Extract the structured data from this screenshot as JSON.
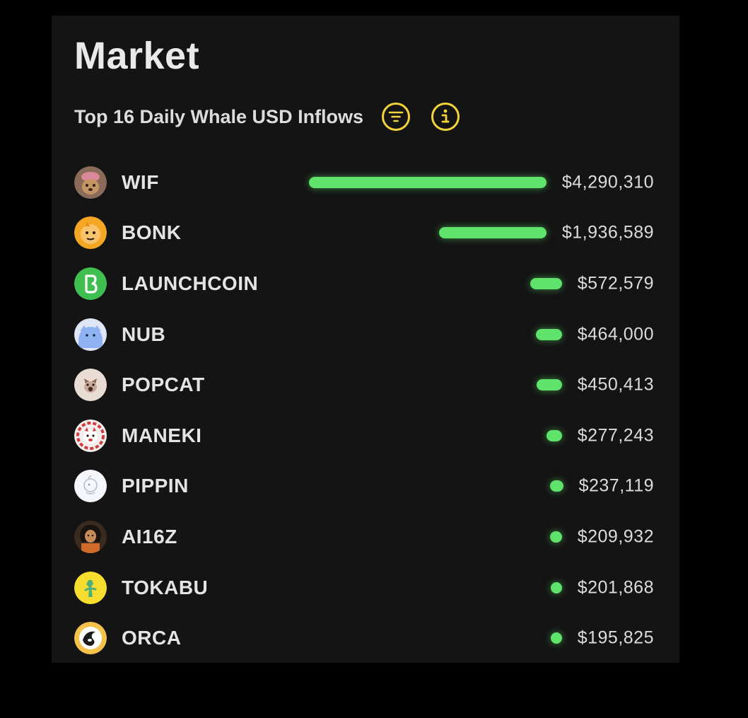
{
  "header": {
    "title": "Market",
    "subtitle": "Top 16 Daily Whale USD Inflows",
    "filter_icon": "filter-icon",
    "info_icon": "info-icon"
  },
  "colors": {
    "background": "#000000",
    "panel": "#141414",
    "bar": "#5fe36a",
    "accent_icon": "#f2d43a"
  },
  "tokens": [
    {
      "name": "WIF",
      "value": "$4,290,310",
      "inflow_usd": 4290310,
      "icon": "wif-avatar-icon"
    },
    {
      "name": "BONK",
      "value": "$1,936,589",
      "inflow_usd": 1936589,
      "icon": "bonk-avatar-icon"
    },
    {
      "name": "LAUNCHCOIN",
      "value": "$572,579",
      "inflow_usd": 572579,
      "icon": "launchcoin-avatar-icon"
    },
    {
      "name": "NUB",
      "value": "$464,000",
      "inflow_usd": 464000,
      "icon": "nub-avatar-icon"
    },
    {
      "name": "POPCAT",
      "value": "$450,413",
      "inflow_usd": 450413,
      "icon": "popcat-avatar-icon"
    },
    {
      "name": "MANEKI",
      "value": "$277,243",
      "inflow_usd": 277243,
      "icon": "maneki-avatar-icon"
    },
    {
      "name": "PIPPIN",
      "value": "$237,119",
      "inflow_usd": 237119,
      "icon": "pippin-avatar-icon"
    },
    {
      "name": "AI16Z",
      "value": "$209,932",
      "inflow_usd": 209932,
      "icon": "ai16z-avatar-icon"
    },
    {
      "name": "TOKABU",
      "value": "$201,868",
      "inflow_usd": 201868,
      "icon": "tokabu-avatar-icon"
    },
    {
      "name": "ORCA",
      "value": "$195,825",
      "inflow_usd": 195825,
      "icon": "orca-avatar-icon"
    }
  ]
}
